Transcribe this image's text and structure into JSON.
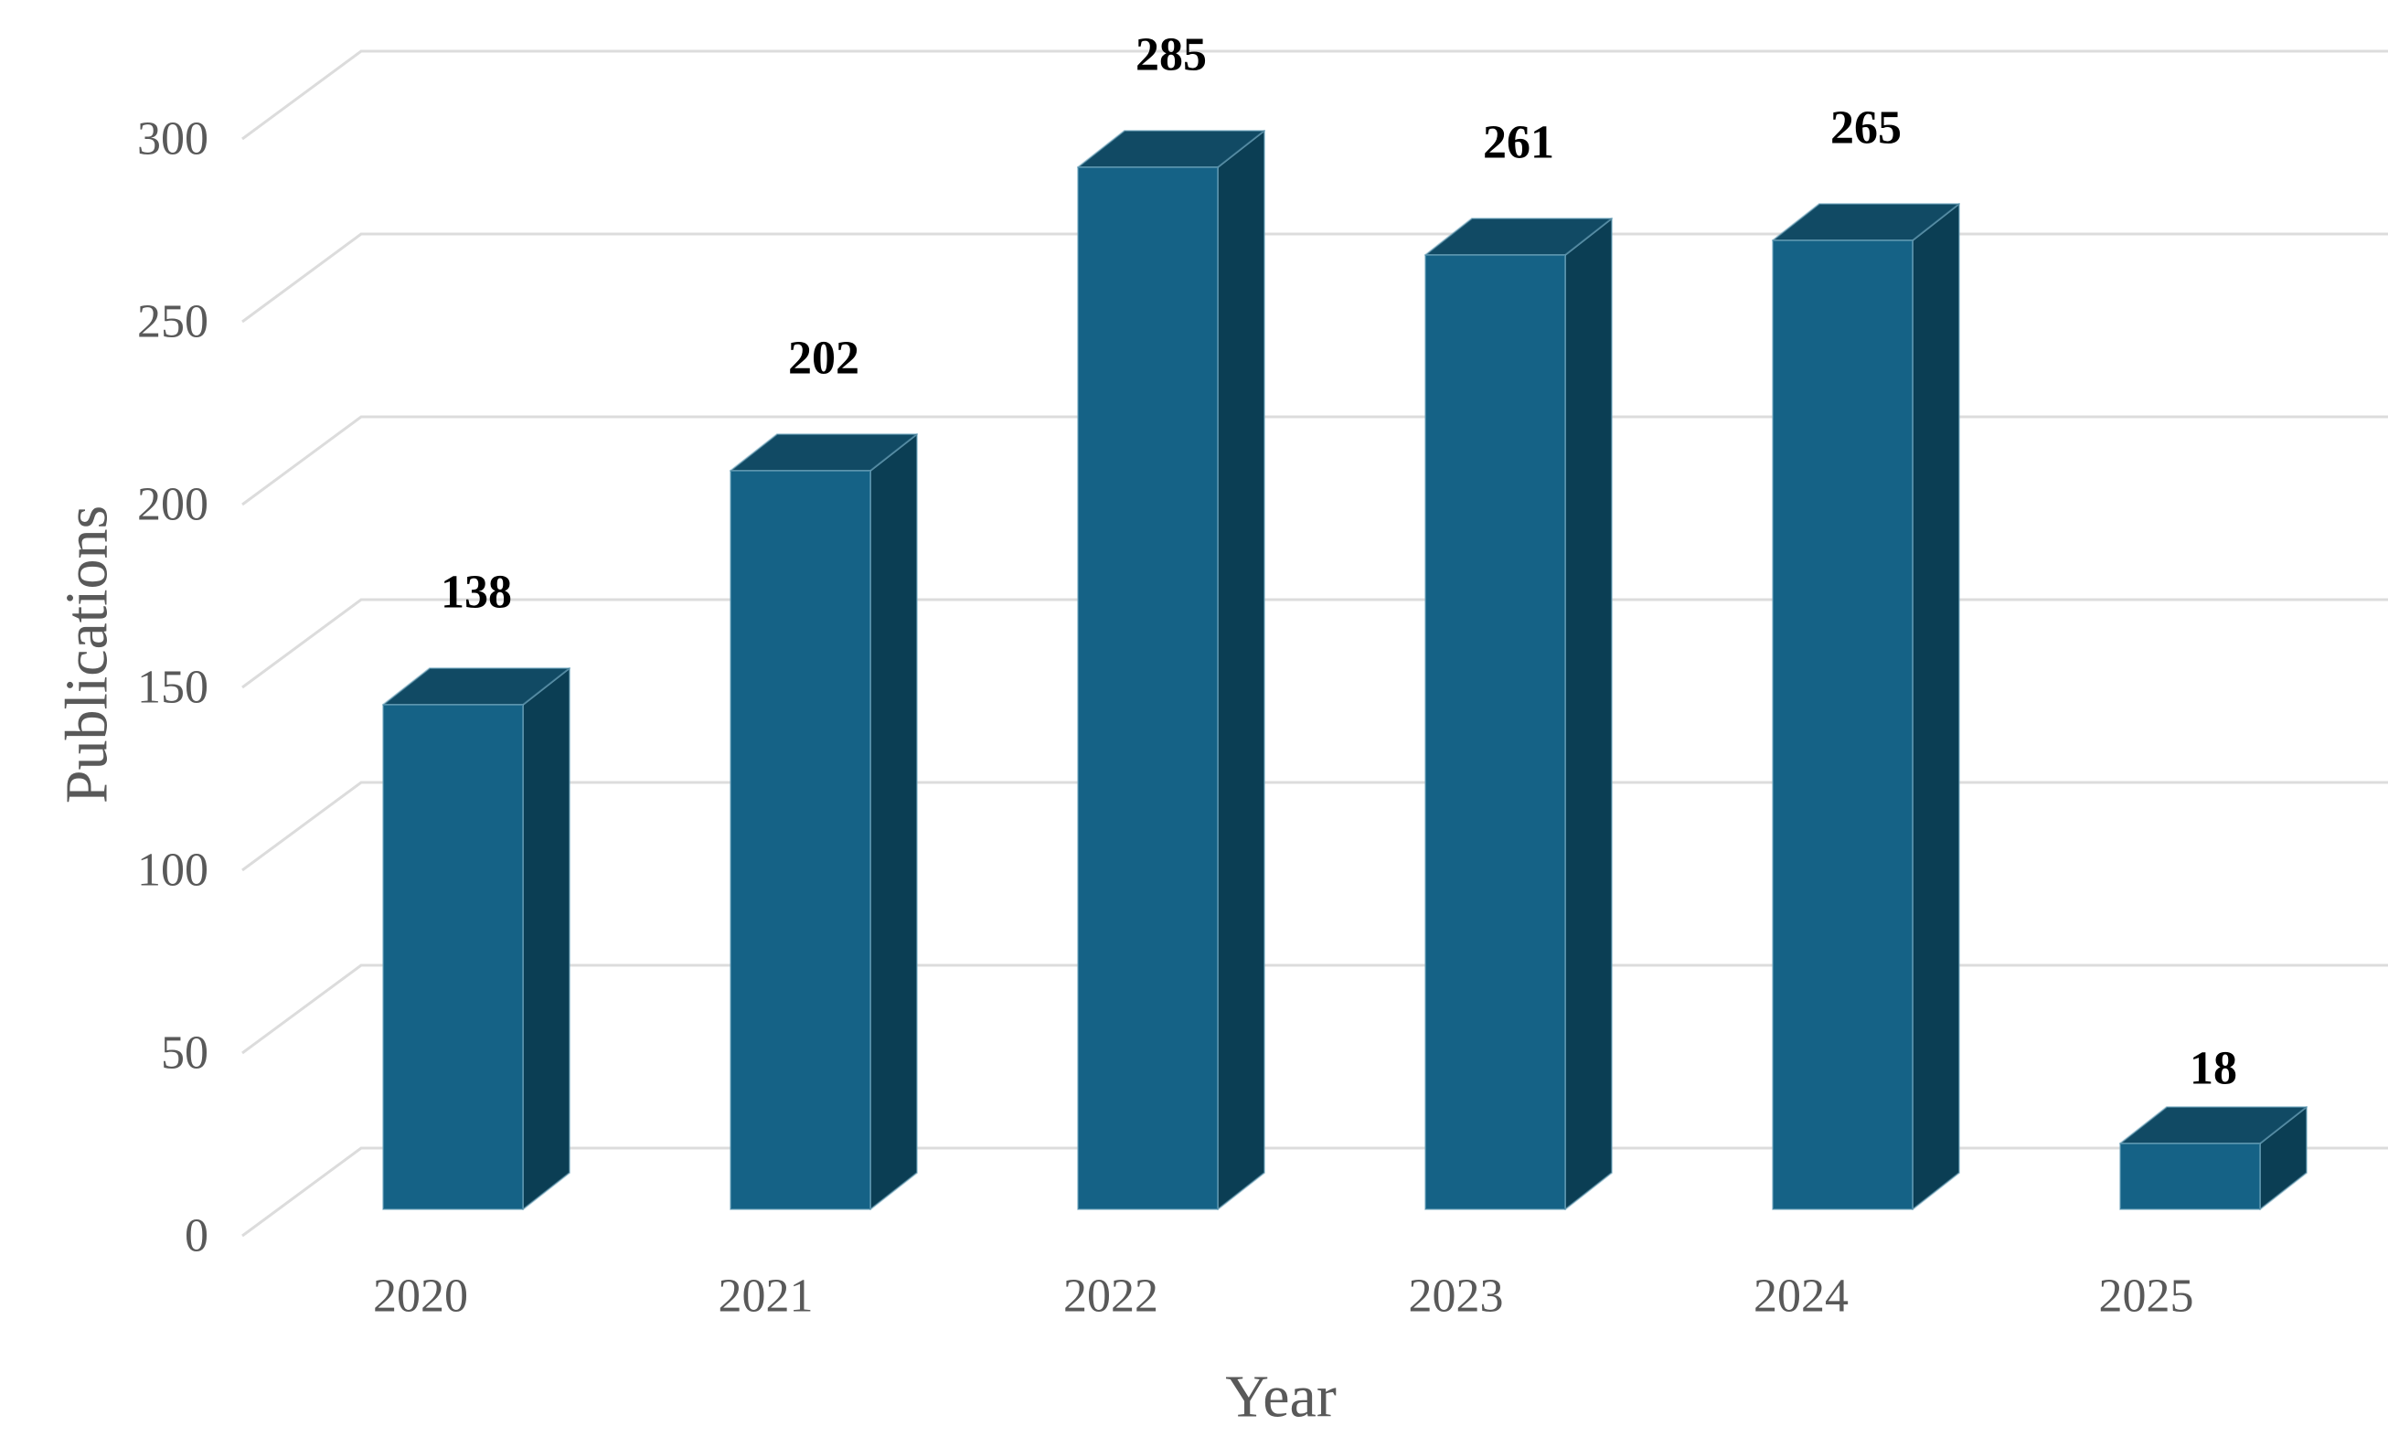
{
  "chart_data": {
    "type": "bar",
    "projection": "3d",
    "categories": [
      "2020",
      "2021",
      "2022",
      "2023",
      "2024",
      "2025"
    ],
    "values": [
      138,
      202,
      285,
      261,
      265,
      18
    ],
    "data_labels": [
      "138",
      "202",
      "285",
      "261",
      "265",
      "18"
    ],
    "xlabel": "Year",
    "ylabel": "Publications",
    "yticks": [
      0,
      50,
      100,
      150,
      200,
      250,
      300
    ],
    "ylim": [
      0,
      300
    ],
    "grid": true,
    "legend_position": "none",
    "colors": {
      "bar_front": "#156286",
      "bar_top": "#114A64",
      "bar_side": "#0B3E54",
      "bar_edge": "#6FA5BD",
      "gridline": "#DCDCDC",
      "axis_text": "#595959",
      "data_label_text": "#000000",
      "background": "#FFFFFF"
    }
  }
}
